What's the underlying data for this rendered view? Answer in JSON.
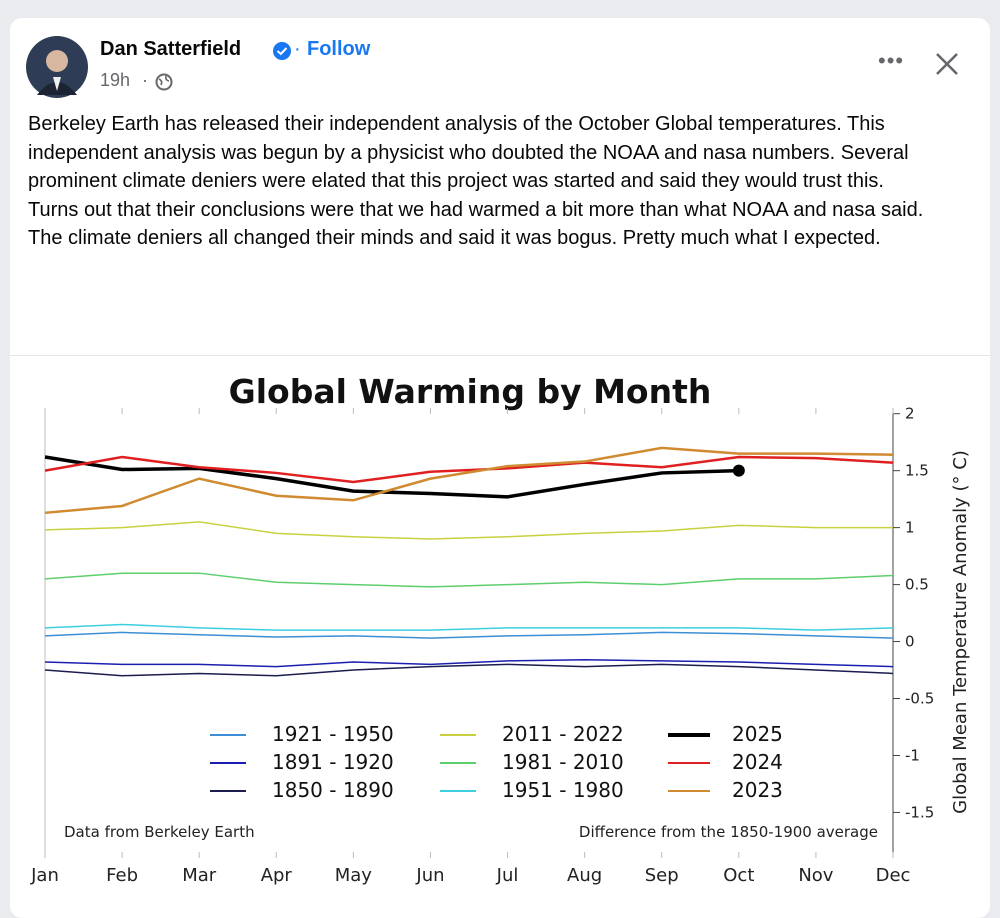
{
  "post": {
    "author": "Dan Satterfield",
    "follow": "Follow",
    "time": "19h",
    "paragraphs": [
      "Berkeley Earth has released their independent analysis of the October Global temperatures. This independent analysis was begun by a physicist who doubted the NOAA and nasa numbers. Several prominent climate deniers were elated that this project was started and said they would trust this.",
      "Turns out that their conclusions were that we had warmed a bit more than what NOAA and nasa said.",
      "The climate deniers all changed their minds and said it was bogus. Pretty much what I expected."
    ]
  },
  "chart_data": {
    "type": "line",
    "title": "Global Warming by Month",
    "y_label": "Global Mean Temperature Anomaly (° C)",
    "note_left": "Data from Berkeley Earth",
    "note_right": "Difference from the 1850-1900 average",
    "categories": [
      "Jan",
      "Feb",
      "Mar",
      "Apr",
      "May",
      "Jun",
      "Jul",
      "Aug",
      "Sep",
      "Oct",
      "Nov",
      "Dec"
    ],
    "series": [
      {
        "name": "1921 - 1950",
        "color": "#3c8fd6",
        "values": [
          0.05,
          0.08,
          0.06,
          0.04,
          0.05,
          0.03,
          0.05,
          0.06,
          0.08,
          0.07,
          0.05,
          0.03
        ]
      },
      {
        "name": "1891 - 1920",
        "color": "#1b1fb0",
        "values": [
          -0.18,
          -0.2,
          -0.2,
          -0.22,
          -0.18,
          -0.2,
          -0.17,
          -0.16,
          -0.17,
          -0.18,
          -0.2,
          -0.22
        ]
      },
      {
        "name": "1850 - 1890",
        "color": "#1c1c4e",
        "values": [
          -0.25,
          -0.3,
          -0.28,
          -0.3,
          -0.25,
          -0.22,
          -0.2,
          -0.22,
          -0.2,
          -0.22,
          -0.25,
          -0.28
        ]
      },
      {
        "name": "2011 - 2022",
        "color": "#c9d03f",
        "values": [
          0.98,
          1.0,
          1.05,
          0.95,
          0.92,
          0.9,
          0.92,
          0.95,
          0.97,
          1.02,
          1.0,
          1.0
        ]
      },
      {
        "name": "1981 - 2010",
        "color": "#5ccf6c",
        "values": [
          0.55,
          0.6,
          0.6,
          0.52,
          0.5,
          0.48,
          0.5,
          0.52,
          0.5,
          0.55,
          0.55,
          0.58
        ]
      },
      {
        "name": "1951 - 1980",
        "color": "#3ccfe0",
        "values": [
          0.12,
          0.15,
          0.12,
          0.1,
          0.1,
          0.1,
          0.12,
          0.12,
          0.12,
          0.12,
          0.1,
          0.12
        ]
      },
      {
        "name": "2025",
        "color": "#000000",
        "end_marker": true,
        "values": [
          1.62,
          1.51,
          1.52,
          1.43,
          1.32,
          1.3,
          1.27,
          1.38,
          1.48,
          1.5,
          null,
          null
        ]
      },
      {
        "name": "2024",
        "color": "#e02020",
        "values": [
          1.5,
          1.62,
          1.53,
          1.48,
          1.4,
          1.49,
          1.52,
          1.57,
          1.53,
          1.62,
          1.61,
          1.57
        ]
      },
      {
        "name": "2023",
        "color": "#d08a30",
        "values": [
          1.13,
          1.19,
          1.43,
          1.28,
          1.24,
          1.43,
          1.54,
          1.58,
          1.7,
          1.65,
          1.65,
          1.64
        ]
      }
    ],
    "ylim": [
      -1.9,
      2.05
    ],
    "yticks": [
      -1.5,
      -1,
      -0.5,
      0,
      0.5,
      1,
      1.5,
      2
    ]
  }
}
